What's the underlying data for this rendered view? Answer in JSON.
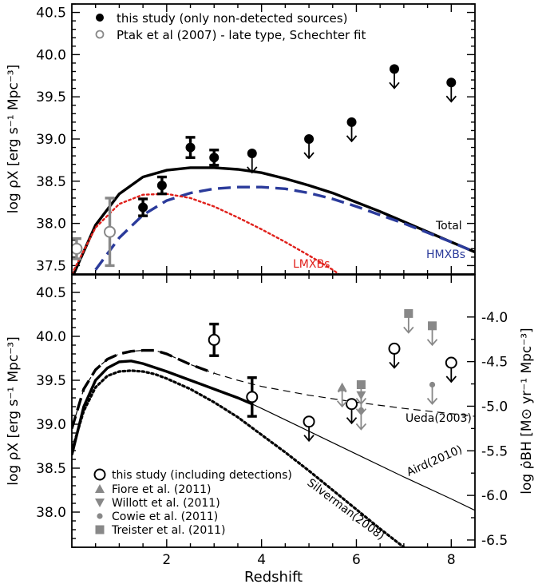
{
  "chart_data": [
    {
      "type": "scatter",
      "xlabel": "",
      "ylabel": "log ρX [erg s⁻¹ Mpc⁻³]",
      "xlim": [
        0,
        8.5
      ],
      "ylim": [
        37.4,
        40.6
      ],
      "yticks": [
        "37.5",
        "38.0",
        "38.5",
        "39.0",
        "39.5",
        "40.0",
        "40.5"
      ],
      "legend": {
        "placement": "top-left",
        "entries": [
          {
            "label": "this study (only non-detected sources)",
            "marker": "filled-circle",
            "color": "#000000"
          },
          {
            "label": "Ptak et al (2007) - late type, Schechter fit",
            "marker": "open-circle",
            "color": "#888888"
          }
        ]
      },
      "series": [
        {
          "name": "this study (only non-detected sources)",
          "kind": "points",
          "x": [
            1.5,
            1.9,
            2.5,
            3.0
          ],
          "y": [
            38.19,
            38.45,
            38.9,
            38.78
          ],
          "err": [
            0.1,
            0.1,
            0.12,
            0.09
          ]
        },
        {
          "name": "this study (only non-detected sources)",
          "kind": "upper-limits",
          "x": [
            3.8,
            5.0,
            5.9,
            6.8,
            8.0
          ],
          "y": [
            38.83,
            39.0,
            39.2,
            39.83,
            39.67
          ]
        },
        {
          "name": "Ptak et al (2007) - late type, Schechter fit",
          "kind": "points",
          "x": [
            0.1,
            0.8
          ],
          "y": [
            37.7,
            37.9
          ],
          "err": [
            0.12,
            0.4
          ],
          "color": "#888888"
        },
        {
          "name": "Total",
          "kind": "line",
          "style": "solid",
          "color": "#000000",
          "x": [
            0,
            0.5,
            1,
            1.5,
            2,
            2.5,
            3,
            3.5,
            4,
            4.5,
            5,
            5.5,
            6,
            6.5,
            7,
            7.5,
            8,
            8.5
          ],
          "y": [
            37.35,
            37.98,
            38.35,
            38.55,
            38.63,
            38.66,
            38.66,
            38.64,
            38.6,
            38.53,
            38.45,
            38.36,
            38.25,
            38.14,
            38.02,
            37.9,
            37.78,
            37.66
          ]
        },
        {
          "name": "HMXBs",
          "kind": "line",
          "style": "dashed",
          "color": "#2b3b9b",
          "x": [
            0.5,
            1,
            1.5,
            2,
            2.5,
            3,
            3.5,
            4,
            4.5,
            5,
            5.5,
            6,
            6.5,
            7,
            7.5,
            8,
            8.5
          ],
          "y": [
            37.45,
            37.83,
            38.1,
            38.27,
            38.36,
            38.41,
            38.43,
            38.43,
            38.41,
            38.36,
            38.29,
            38.2,
            38.1,
            38.0,
            37.89,
            37.78,
            37.66
          ]
        },
        {
          "name": "LMXBs",
          "kind": "line",
          "style": "dotted",
          "color": "#e0201b",
          "x": [
            0,
            0.5,
            1,
            1.5,
            2,
            2.5,
            3,
            3.5,
            4,
            4.5,
            5,
            5.5,
            6
          ],
          "y": [
            37.4,
            37.95,
            38.23,
            38.34,
            38.35,
            38.3,
            38.2,
            38.07,
            37.93,
            37.78,
            37.62,
            37.45,
            37.25
          ]
        }
      ],
      "annotations": [
        "Total",
        "LMXBs",
        "HMXBs"
      ]
    },
    {
      "type": "scatter",
      "xlabel": "Redshift",
      "xticks": [
        "2",
        "4",
        "6",
        "8"
      ],
      "ylabel": "log ρX [erg s⁻¹ Mpc⁻³]",
      "ylabel_right": "log ρ̇BH [M⊙ yr⁻¹ Mpc⁻³]",
      "xlim": [
        0,
        8.5
      ],
      "ylim": [
        37.6,
        40.7
      ],
      "yticks": [
        "38.0",
        "38.5",
        "39.0",
        "39.5",
        "40.0",
        "40.5"
      ],
      "yticks_right": [
        "-4.0",
        "-4.5",
        "-5.0",
        "-5.5",
        "-6.0",
        "-6.5"
      ],
      "legend": {
        "placement": "bottom-left",
        "entries": [
          {
            "label": "this study (including detections)",
            "marker": "open-circle",
            "color": "#000000"
          },
          {
            "label": "Fiore et al. (2011)",
            "marker": "triangle-up",
            "color": "#888888"
          },
          {
            "label": "Willott et al. (2011)",
            "marker": "triangle-down",
            "color": "#888888"
          },
          {
            "label": "Cowie et al. (2011)",
            "marker": "small-circle",
            "color": "#888888"
          },
          {
            "label": "Treister et al. (2011)",
            "marker": "square",
            "color": "#888888"
          }
        ]
      },
      "series": [
        {
          "name": "this study (including detections)",
          "kind": "points",
          "x": [
            3.0,
            3.8
          ],
          "y": [
            39.96,
            39.31
          ],
          "err": [
            0.18,
            0.22
          ]
        },
        {
          "name": "this study (including detections)",
          "kind": "upper-limits",
          "x": [
            5.0,
            5.9,
            6.8,
            8.0
          ],
          "y": [
            39.03,
            39.23,
            39.86,
            39.7
          ]
        },
        {
          "name": "Fiore et al. (2011)",
          "kind": "upper-limits",
          "x": [
            5.7
          ],
          "y": [
            39.42
          ],
          "color": "#888888",
          "marker": "triangle-up"
        },
        {
          "name": "Willott et al. (2011)",
          "kind": "upper-limits",
          "x": [
            6.1
          ],
          "y": [
            39.33
          ],
          "color": "#888888",
          "marker": "triangle-down"
        },
        {
          "name": "Cowie et al. (2011)",
          "kind": "upper-limits",
          "x": [
            6.1,
            7.6
          ],
          "y": [
            39.16,
            39.45
          ],
          "color": "#888888",
          "marker": "small-circle"
        },
        {
          "name": "Treister et al. (2011)",
          "kind": "upper-limits",
          "x": [
            6.1,
            7.1,
            7.6
          ],
          "y": [
            39.45,
            40.26,
            40.12
          ],
          "color": "#888888",
          "marker": "square"
        },
        {
          "name": "Ueda(2003)",
          "kind": "line",
          "style": "dashed",
          "x": [
            0,
            0.25,
            0.5,
            0.75,
            1,
            1.25,
            1.5,
            1.75,
            2,
            2.5,
            3,
            3.5,
            4,
            5,
            6,
            7,
            8,
            8.5
          ],
          "y": [
            38.95,
            39.4,
            39.62,
            39.74,
            39.8,
            39.83,
            39.84,
            39.84,
            39.8,
            39.68,
            39.58,
            39.5,
            39.43,
            39.33,
            39.25,
            39.18,
            39.12,
            39.09
          ]
        },
        {
          "name": "Aird(2010)",
          "kind": "line",
          "style": "solid",
          "x": [
            0,
            0.25,
            0.5,
            0.75,
            1,
            1.25,
            1.5,
            2,
            2.5,
            3,
            3.5,
            3.8,
            4,
            5,
            6,
            7,
            8,
            8.5
          ],
          "y": [
            38.65,
            39.2,
            39.5,
            39.64,
            39.71,
            39.72,
            39.69,
            39.6,
            39.5,
            39.4,
            39.3,
            39.23,
            39.18,
            38.92,
            38.66,
            38.4,
            38.15,
            38.02
          ]
        },
        {
          "name": "Silverman(2008)",
          "kind": "line",
          "style": "dotted",
          "x": [
            0,
            0.25,
            0.5,
            0.75,
            1,
            1.25,
            1.5,
            1.75,
            2,
            2.5,
            3,
            3.5,
            4,
            4.5,
            5,
            5.5,
            6,
            6.5,
            7,
            7.5
          ],
          "y": [
            38.7,
            39.15,
            39.42,
            39.55,
            39.6,
            39.61,
            39.6,
            39.57,
            39.52,
            39.4,
            39.25,
            39.08,
            38.88,
            38.68,
            38.47,
            38.25,
            38.03,
            37.81,
            37.6,
            37.4
          ]
        }
      ],
      "annotations": [
        "Ueda(2003)",
        "Aird(2010)",
        "Silverman(2008)"
      ]
    }
  ]
}
